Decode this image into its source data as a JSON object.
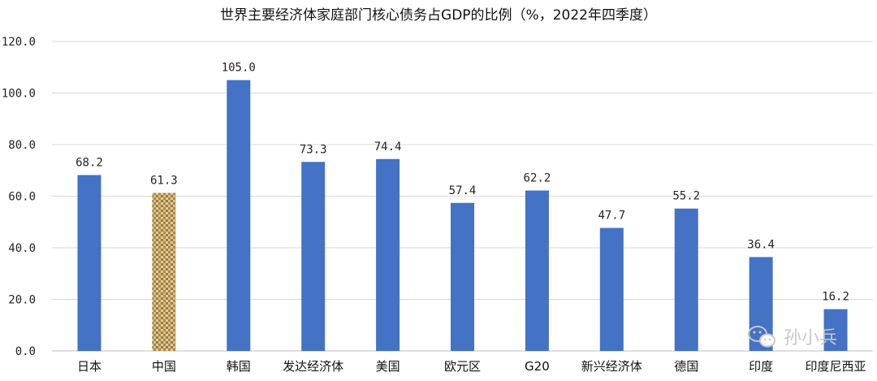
{
  "chart_data": {
    "type": "bar",
    "title": "世界主要经济体家庭部门核心债务占GDP的比例（%，2022年四季度）",
    "categories": [
      "日本",
      "中国",
      "韩国",
      "发达经济体",
      "美国",
      "欧元区",
      "G20",
      "新兴经济体",
      "德国",
      "印度",
      "印度尼西亚"
    ],
    "values": [
      68.2,
      61.3,
      105.0,
      73.3,
      74.4,
      57.4,
      62.2,
      47.7,
      55.2,
      36.4,
      16.2
    ],
    "data_labels": [
      "68.2",
      "61.3",
      "105.0",
      "73.3",
      "74.4",
      "57.4",
      "62.2",
      "47.7",
      "55.2",
      "36.4",
      "16.2"
    ],
    "ylim": [
      0,
      120
    ],
    "yticks": [
      "0.0",
      "20.0",
      "40.0",
      "60.0",
      "80.0",
      "100.0",
      "120.0"
    ],
    "ytick_values": [
      0,
      20,
      40,
      60,
      80,
      100,
      120
    ],
    "grid": true,
    "legend": "none",
    "colors": {
      "bar": "#4472c4",
      "highlight_texture": "#b8975a"
    },
    "highlight_category": "中国"
  },
  "watermark": {
    "text": "孙小兵",
    "icon": "wechat-icon"
  }
}
